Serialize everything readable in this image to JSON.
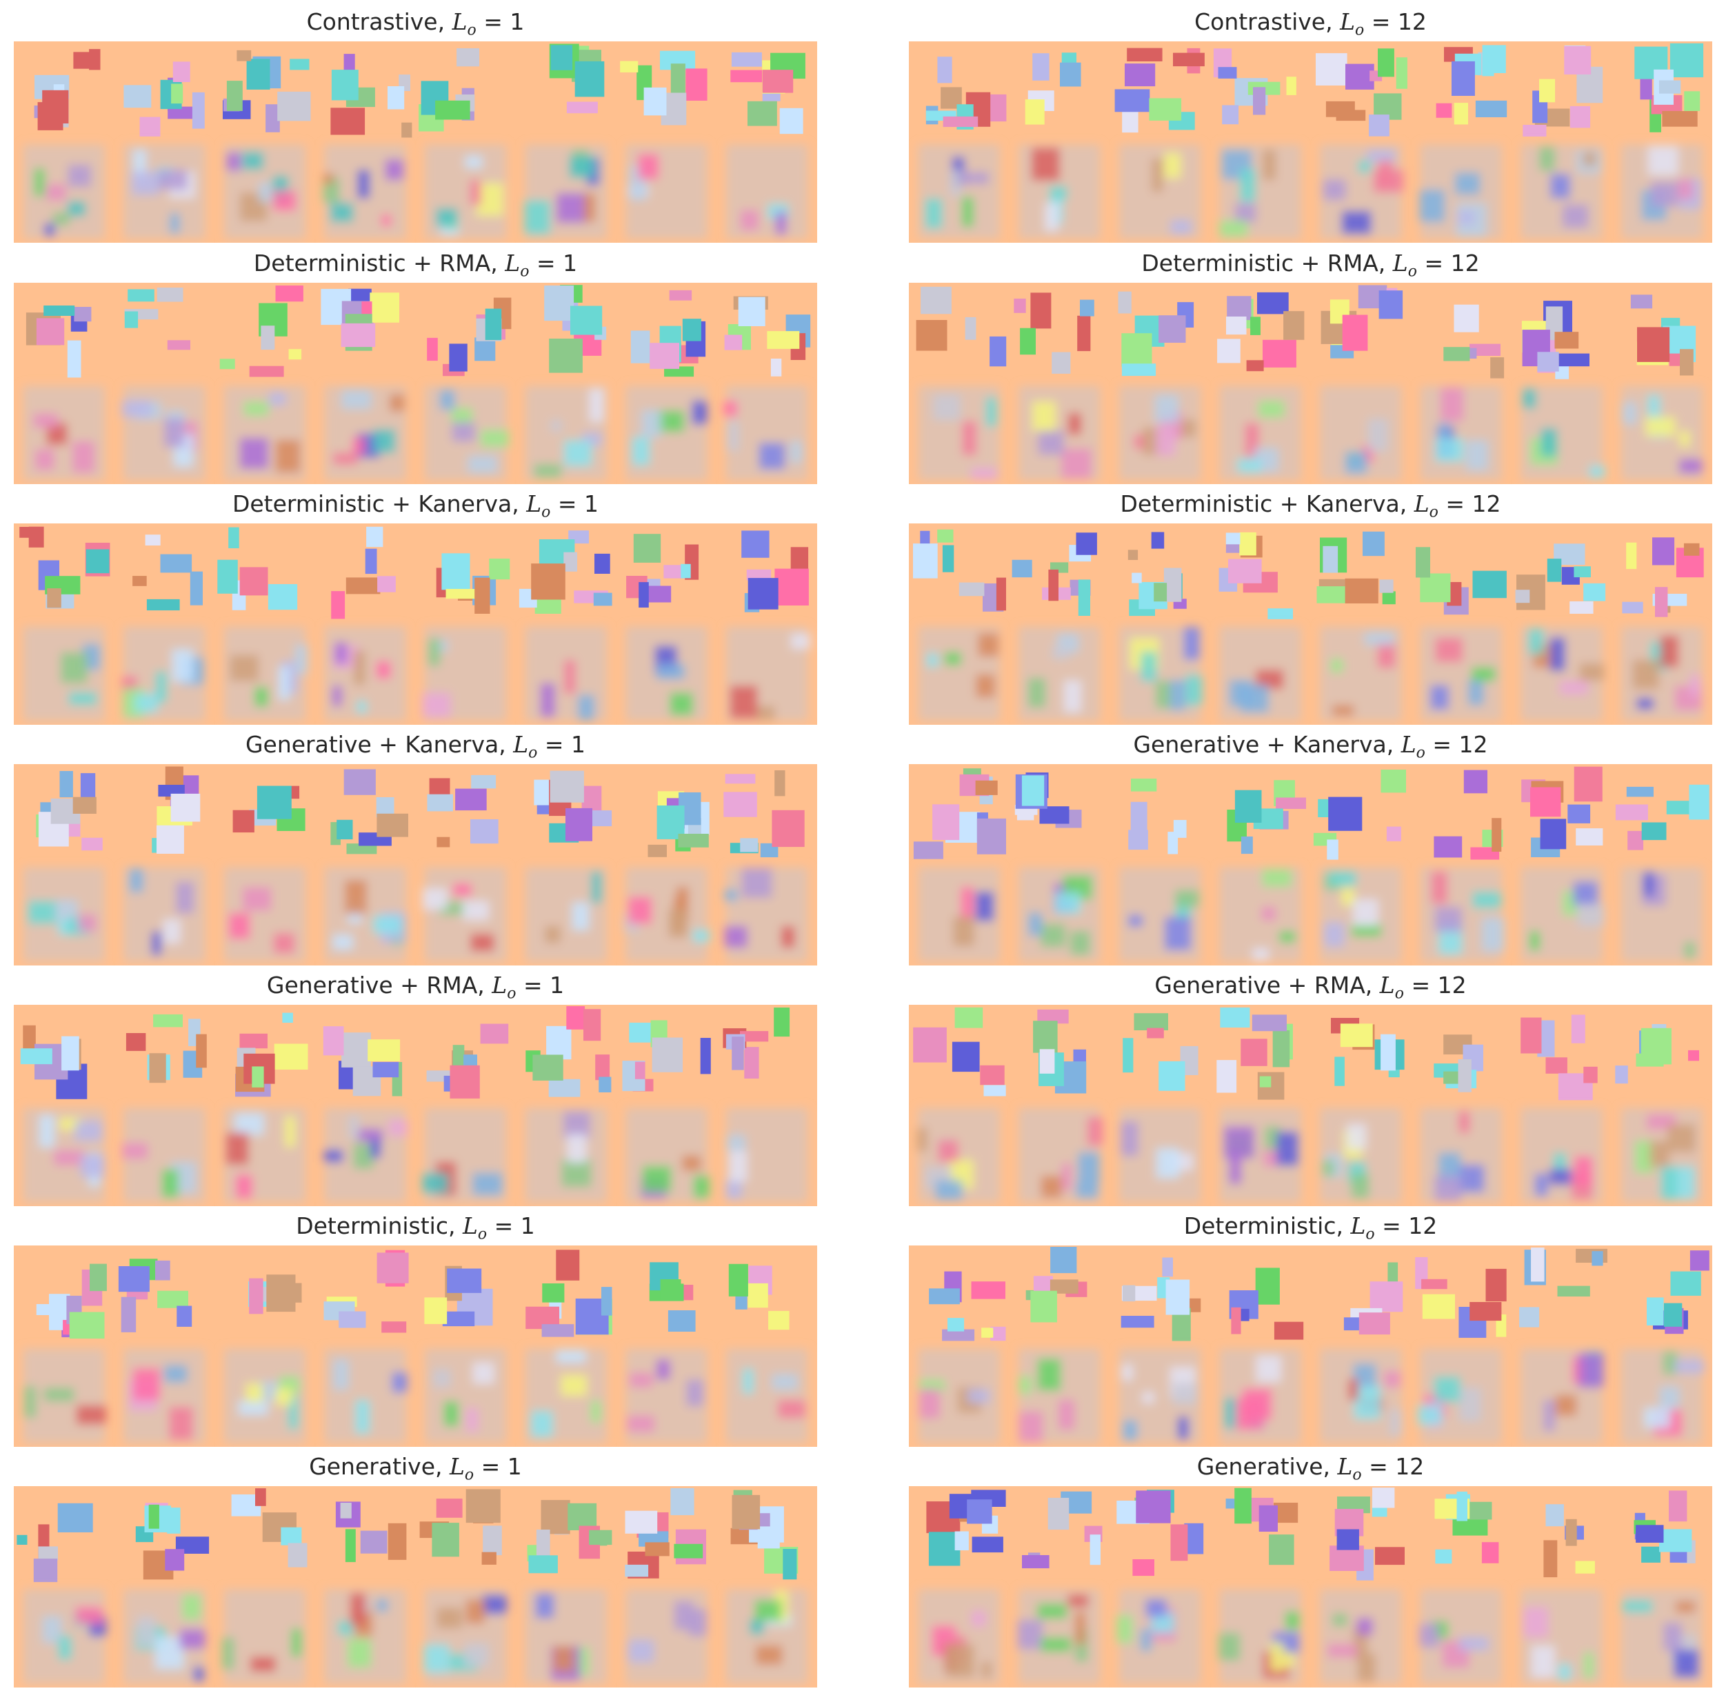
{
  "figure": {
    "panel_colors": {
      "background": "#ffc08f",
      "recon_background": "#ffc08f",
      "palette": [
        "#c9c9d6",
        "#e9a7d9",
        "#8ae3ef",
        "#f27c9a",
        "#b39ad6",
        "#6ad8d3",
        "#9ee88b",
        "#7e85e8",
        "#d88a5e",
        "#e3e3f5",
        "#b8d0e8",
        "#5e5ed8",
        "#ff6fa8",
        "#8cc98a",
        "#c8e4ff",
        "#aa6ed8",
        "#f5f57f",
        "#7fb2e0",
        "#d96060",
        "#67d467",
        "#b8b8ea",
        "#e88fbf",
        "#4dc2c2",
        "#cfa07a"
      ]
    },
    "panels": [
      {
        "title": "Contrastive,",
        "symbol": "L",
        "subscript": "o",
        "suffix": "= 1"
      },
      {
        "title": "Contrastive,",
        "symbol": "L",
        "subscript": "o",
        "suffix": "= 12"
      },
      {
        "title": "Deterministic + RMA,",
        "symbol": "L",
        "subscript": "o",
        "suffix": "= 1"
      },
      {
        "title": "Deterministic + RMA,",
        "symbol": "L",
        "subscript": "o",
        "suffix": "= 12"
      },
      {
        "title": "Deterministic + Kanerva,",
        "symbol": "L",
        "subscript": "o",
        "suffix": "= 1"
      },
      {
        "title": "Deterministic + Kanerva,",
        "symbol": "L",
        "subscript": "o",
        "suffix": "= 12"
      },
      {
        "title": "Generative + Kanerva,",
        "symbol": "L",
        "subscript": "o",
        "suffix": "= 1"
      },
      {
        "title": "Generative + Kanerva,",
        "symbol": "L",
        "subscript": "o",
        "suffix": "= 12"
      },
      {
        "title": "Generative + RMA,",
        "symbol": "L",
        "subscript": "o",
        "suffix": "= 1"
      },
      {
        "title": "Generative + RMA,",
        "symbol": "L",
        "subscript": "o",
        "suffix": "= 12"
      },
      {
        "title": "Deterministic,",
        "symbol": "L",
        "subscript": "o",
        "suffix": "= 1"
      },
      {
        "title": "Deterministic,",
        "symbol": "L",
        "subscript": "o",
        "suffix": "= 12"
      },
      {
        "title": "Generative,",
        "symbol": "L",
        "subscript": "o",
        "suffix": "= 1"
      },
      {
        "title": "Generative,",
        "symbol": "L",
        "subscript": "o",
        "suffix": "= 12"
      }
    ]
  }
}
